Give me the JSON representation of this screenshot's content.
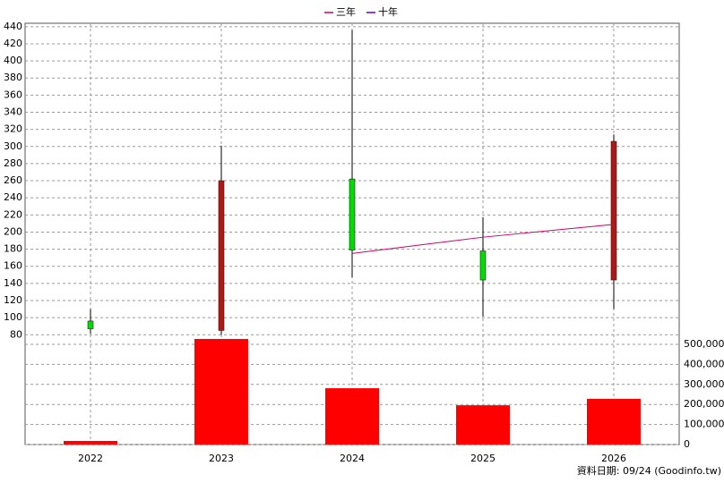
{
  "chart_data": {
    "type": "candlestick",
    "categories": [
      "2022",
      "2023",
      "2024",
      "2025",
      "2026"
    ],
    "open": [
      96,
      85,
      262,
      178,
      144
    ],
    "high": [
      110,
      301,
      436,
      217,
      314
    ],
    "low": [
      81,
      80,
      147,
      101,
      110
    ],
    "close": [
      87,
      260,
      179,
      144,
      306
    ],
    "up_color": "#b01818",
    "down_color": "#00dd00",
    "ylim": [
      74,
      444
    ],
    "yticks": [
      80,
      100,
      120,
      140,
      160,
      180,
      200,
      220,
      240,
      260,
      280,
      300,
      320,
      340,
      360,
      380,
      400,
      420,
      440
    ],
    "series": [
      {
        "name": "三年",
        "color": "#cc0066",
        "values": [
          null,
          null,
          175,
          194,
          209
        ]
      },
      {
        "name": "十年",
        "color": "#6600cc",
        "values": [
          null,
          null,
          null,
          null,
          null
        ]
      }
    ],
    "volume": {
      "color": "#ff0000",
      "values": [
        18000,
        527000,
        281000,
        196000,
        228000
      ]
    },
    "y2lim": [
      0,
      500000
    ],
    "y2ticks": [
      0,
      {
        "value": 100000,
        "label": "100,000"
      },
      {
        "value": 200000,
        "label": "200,000"
      },
      {
        "value": 300000,
        "label": "300,000"
      },
      {
        "value": 400000,
        "label": "400,000"
      },
      {
        "value": 500000,
        "label": "500,000"
      }
    ],
    "grid": true,
    "legend": "top",
    "source": "資料日期: 09/24 (Goodinfo.tw)"
  }
}
